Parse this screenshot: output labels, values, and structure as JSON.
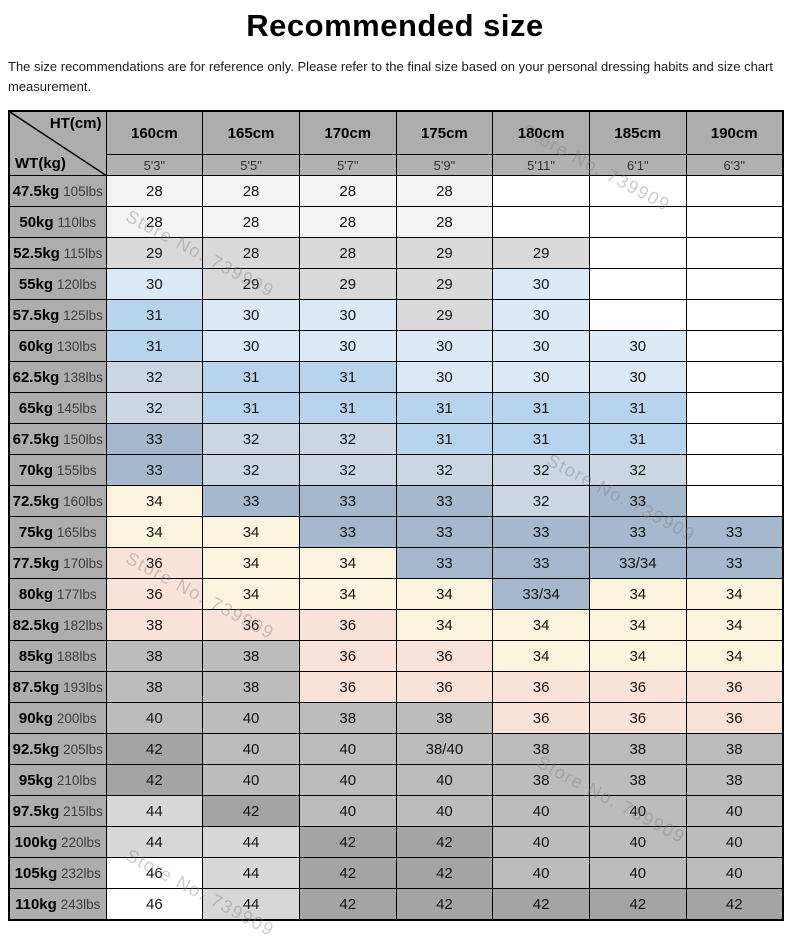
{
  "page": {
    "title": "Recommended size",
    "subtitle": "The size recommendations are for reference only. Please refer to the final size based on your personal dressing habits and size chart measurement."
  },
  "watermark": {
    "text": "Store No. 739909"
  },
  "table": {
    "corner": {
      "top_label": "HT(cm)",
      "bottom_label": "WT(kg)"
    }
  },
  "chart_data": {
    "type": "table",
    "title": "Recommended size",
    "columns_cm": [
      "160cm",
      "165cm",
      "170cm",
      "175cm",
      "180cm",
      "185cm",
      "190cm"
    ],
    "columns_ft": [
      "5'3\"",
      "5'5\"",
      "5'7\"",
      "5'9\"",
      "5'11\"",
      "6'1\"",
      "6'3\""
    ],
    "palette": {
      "w": "#ffffff",
      "nw": "#f3f3f3",
      "lg": "#d9d9d9",
      "b30": "#dbe9f7",
      "b31": "#b8d3ec",
      "bg32": "#ccd6e2",
      "bg33": "#a5b8ce",
      "cream": "#faf3de",
      "pink": "#f9e3d8",
      "gl": "#d7d7d7",
      "gm": "#bcbcbc",
      "gd": "#a4a4a4"
    },
    "rows": [
      {
        "kg": "47.5kg",
        "lbs": "105lbs",
        "values": [
          "28",
          "28",
          "28",
          "28",
          "",
          "",
          ""
        ],
        "colors": [
          "nw",
          "nw",
          "nw",
          "nw",
          "w",
          "w",
          "w"
        ]
      },
      {
        "kg": "50kg",
        "lbs": "110lbs",
        "values": [
          "28",
          "28",
          "28",
          "28",
          "",
          "",
          ""
        ],
        "colors": [
          "nw",
          "nw",
          "nw",
          "nw",
          "w",
          "w",
          "w"
        ]
      },
      {
        "kg": "52.5kg",
        "lbs": "115lbs",
        "values": [
          "29",
          "28",
          "28",
          "29",
          "29",
          "",
          ""
        ],
        "colors": [
          "lg",
          "lg",
          "lg",
          "lg",
          "lg",
          "w",
          "w"
        ]
      },
      {
        "kg": "55kg",
        "lbs": "120lbs",
        "values": [
          "30",
          "29",
          "29",
          "29",
          "30",
          "",
          ""
        ],
        "colors": [
          "b30",
          "lg",
          "lg",
          "lg",
          "b30",
          "w",
          "w"
        ]
      },
      {
        "kg": "57.5kg",
        "lbs": "125lbs",
        "values": [
          "31",
          "30",
          "30",
          "29",
          "30",
          "",
          ""
        ],
        "colors": [
          "b31",
          "b30",
          "b30",
          "lg",
          "b30",
          "w",
          "w"
        ]
      },
      {
        "kg": "60kg",
        "lbs": "130lbs",
        "values": [
          "31",
          "30",
          "30",
          "30",
          "30",
          "30",
          ""
        ],
        "colors": [
          "b31",
          "b30",
          "b30",
          "b30",
          "b30",
          "b30",
          "w"
        ]
      },
      {
        "kg": "62.5kg",
        "lbs": "138lbs",
        "values": [
          "32",
          "31",
          "31",
          "30",
          "30",
          "30",
          ""
        ],
        "colors": [
          "bg32",
          "b31",
          "b31",
          "b30",
          "b30",
          "b30",
          "w"
        ]
      },
      {
        "kg": "65kg",
        "lbs": "145lbs",
        "values": [
          "32",
          "31",
          "31",
          "31",
          "31",
          "31",
          ""
        ],
        "colors": [
          "bg32",
          "b31",
          "b31",
          "b31",
          "b31",
          "b31",
          "w"
        ]
      },
      {
        "kg": "67.5kg",
        "lbs": "150lbs",
        "values": [
          "33",
          "32",
          "32",
          "31",
          "31",
          "31",
          ""
        ],
        "colors": [
          "bg33",
          "bg32",
          "bg32",
          "b31",
          "b31",
          "b31",
          "w"
        ]
      },
      {
        "kg": "70kg",
        "lbs": "155lbs",
        "values": [
          "33",
          "32",
          "32",
          "32",
          "32",
          "32",
          ""
        ],
        "colors": [
          "bg33",
          "bg32",
          "bg32",
          "bg32",
          "bg32",
          "bg32",
          "w"
        ]
      },
      {
        "kg": "72.5kg",
        "lbs": "160lbs",
        "values": [
          "34",
          "33",
          "33",
          "33",
          "32",
          "33",
          ""
        ],
        "colors": [
          "cream",
          "bg33",
          "bg33",
          "bg33",
          "bg32",
          "bg33",
          "w"
        ]
      },
      {
        "kg": "75kg",
        "lbs": "165lbs",
        "values": [
          "34",
          "34",
          "33",
          "33",
          "33",
          "33",
          "33"
        ],
        "colors": [
          "cream",
          "cream",
          "bg33",
          "bg33",
          "bg33",
          "bg33",
          "bg33"
        ]
      },
      {
        "kg": "77.5kg",
        "lbs": "170lbs",
        "values": [
          "36",
          "34",
          "34",
          "33",
          "33",
          "33/34",
          "33"
        ],
        "colors": [
          "pink",
          "cream",
          "cream",
          "bg33",
          "bg33",
          "bg33",
          "bg33"
        ]
      },
      {
        "kg": "80kg",
        "lbs": "177lbs",
        "values": [
          "36",
          "34",
          "34",
          "34",
          "33/34",
          "34",
          "34"
        ],
        "colors": [
          "pink",
          "cream",
          "cream",
          "cream",
          "bg33",
          "cream",
          "cream"
        ]
      },
      {
        "kg": "82.5kg",
        "lbs": "182lbs",
        "values": [
          "38",
          "36",
          "36",
          "34",
          "34",
          "34",
          "34"
        ],
        "colors": [
          "pink",
          "pink",
          "pink",
          "cream",
          "cream",
          "cream",
          "cream"
        ]
      },
      {
        "kg": "85kg",
        "lbs": "188lbs",
        "values": [
          "38",
          "38",
          "36",
          "36",
          "34",
          "34",
          "34"
        ],
        "colors": [
          "gm",
          "gm",
          "pink",
          "pink",
          "cream",
          "cream",
          "cream"
        ]
      },
      {
        "kg": "87.5kg",
        "lbs": "193lbs",
        "values": [
          "38",
          "38",
          "36",
          "36",
          "36",
          "36",
          "36"
        ],
        "colors": [
          "gm",
          "gm",
          "pink",
          "pink",
          "pink",
          "pink",
          "pink"
        ]
      },
      {
        "kg": "90kg",
        "lbs": "200lbs",
        "values": [
          "40",
          "40",
          "38",
          "38",
          "36",
          "36",
          "36"
        ],
        "colors": [
          "gm",
          "gm",
          "gm",
          "gm",
          "pink",
          "pink",
          "pink"
        ]
      },
      {
        "kg": "92.5kg",
        "lbs": "205lbs",
        "values": [
          "42",
          "40",
          "40",
          "38/40",
          "38",
          "38",
          "38"
        ],
        "colors": [
          "gd",
          "gm",
          "gm",
          "gm",
          "gm",
          "gm",
          "gm"
        ]
      },
      {
        "kg": "95kg",
        "lbs": "210lbs",
        "values": [
          "42",
          "40",
          "40",
          "40",
          "38",
          "38",
          "38"
        ],
        "colors": [
          "gd",
          "gm",
          "gm",
          "gm",
          "gm",
          "gm",
          "gm"
        ]
      },
      {
        "kg": "97.5kg",
        "lbs": "215lbs",
        "values": [
          "44",
          "42",
          "40",
          "40",
          "40",
          "40",
          "40"
        ],
        "colors": [
          "gl",
          "gd",
          "gm",
          "gm",
          "gm",
          "gm",
          "gm"
        ]
      },
      {
        "kg": "100kg",
        "lbs": "220lbs",
        "values": [
          "44",
          "44",
          "42",
          "42",
          "40",
          "40",
          "40"
        ],
        "colors": [
          "gl",
          "gl",
          "gd",
          "gd",
          "gm",
          "gm",
          "gm"
        ]
      },
      {
        "kg": "105kg",
        "lbs": "232lbs",
        "values": [
          "46",
          "44",
          "42",
          "42",
          "40",
          "40",
          "40"
        ],
        "colors": [
          "w",
          "gl",
          "gd",
          "gd",
          "gm",
          "gm",
          "gm"
        ]
      },
      {
        "kg": "110kg",
        "lbs": "243lbs",
        "values": [
          "46",
          "44",
          "42",
          "42",
          "42",
          "42",
          "42"
        ],
        "colors": [
          "w",
          "gl",
          "gd",
          "gd",
          "gd",
          "gd",
          "gd"
        ]
      }
    ]
  }
}
